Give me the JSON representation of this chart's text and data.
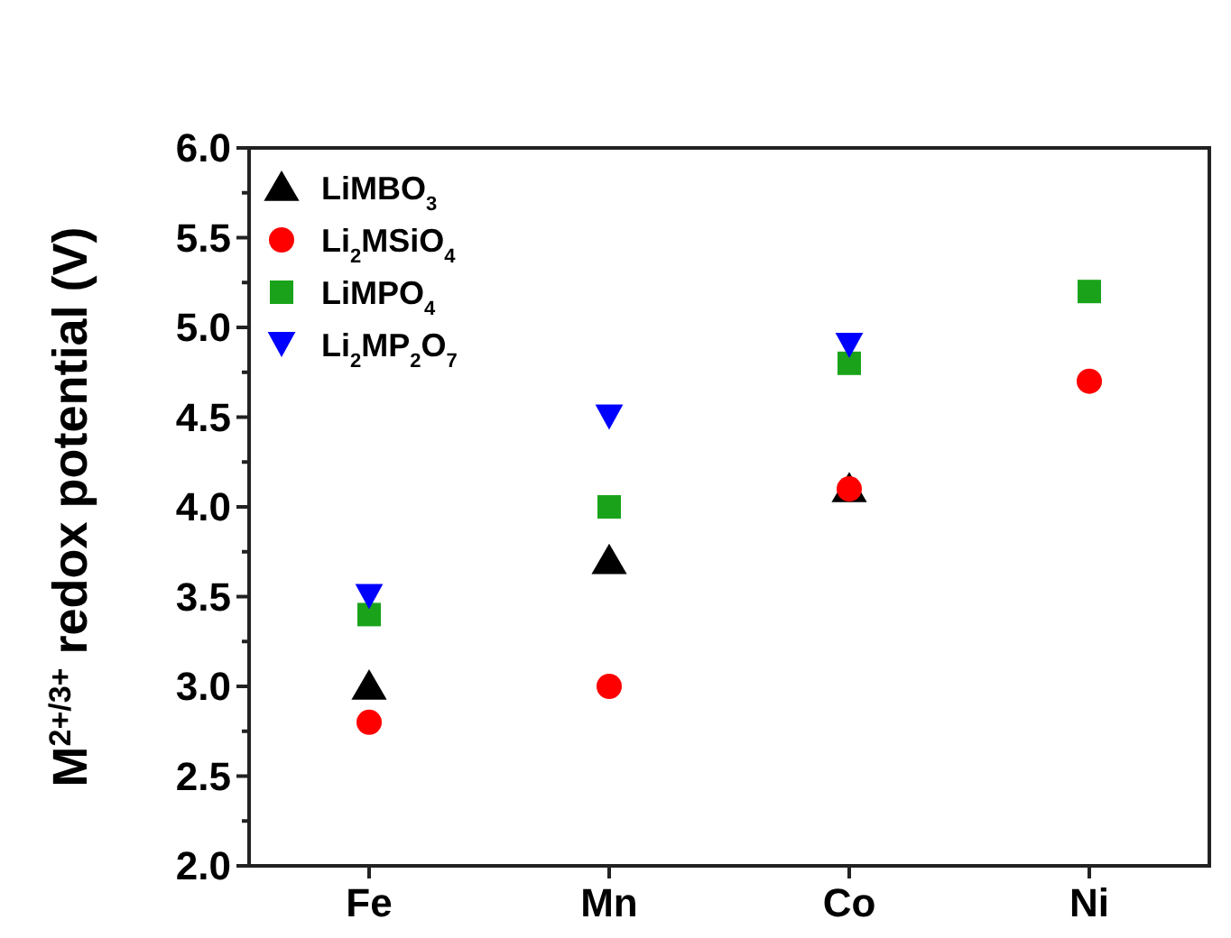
{
  "chart_data": {
    "type": "scatter",
    "ylabel": "M$^{2+/3+}$ redox potential (V)",
    "categories": [
      "Fe",
      "Mn",
      "Co",
      "Ni"
    ],
    "series": [
      {
        "name": "LiMBO$_{3}$",
        "color": "#000000",
        "marker": "triangle",
        "values": [
          3.0,
          3.7,
          4.1,
          null
        ]
      },
      {
        "name": "Li$_{2}$MSiO$_{4}$",
        "color": "#ff0000",
        "marker": "circle",
        "values": [
          2.8,
          3.0,
          4.1,
          4.7
        ]
      },
      {
        "name": "LiMPO$_{4}$",
        "color": "#1aa31a",
        "marker": "square",
        "values": [
          3.4,
          4.0,
          4.8,
          5.2
        ]
      },
      {
        "name": "Li$_{2}$MP$_{2}$O$_{7}$",
        "color": "#0000ff",
        "marker": "triangle-down",
        "values": [
          3.5,
          4.5,
          4.9,
          null
        ]
      }
    ],
    "ylim": [
      2.0,
      6.0
    ],
    "yticks": [
      {
        "value": 2,
        "label": "2.0"
      },
      {
        "value": 2.5,
        "label": "2.5"
      },
      {
        "value": 3,
        "label": "3.0"
      },
      {
        "value": 3.5,
        "label": "3.5"
      },
      {
        "value": 4,
        "label": "4.0"
      },
      {
        "value": 4.5,
        "label": "4.5"
      },
      {
        "value": 5,
        "label": "5.0"
      },
      {
        "value": 5.5,
        "label": "5.5"
      },
      {
        "value": 6,
        "label": "6.0"
      }
    ],
    "grid": false,
    "legend": "top left"
  }
}
